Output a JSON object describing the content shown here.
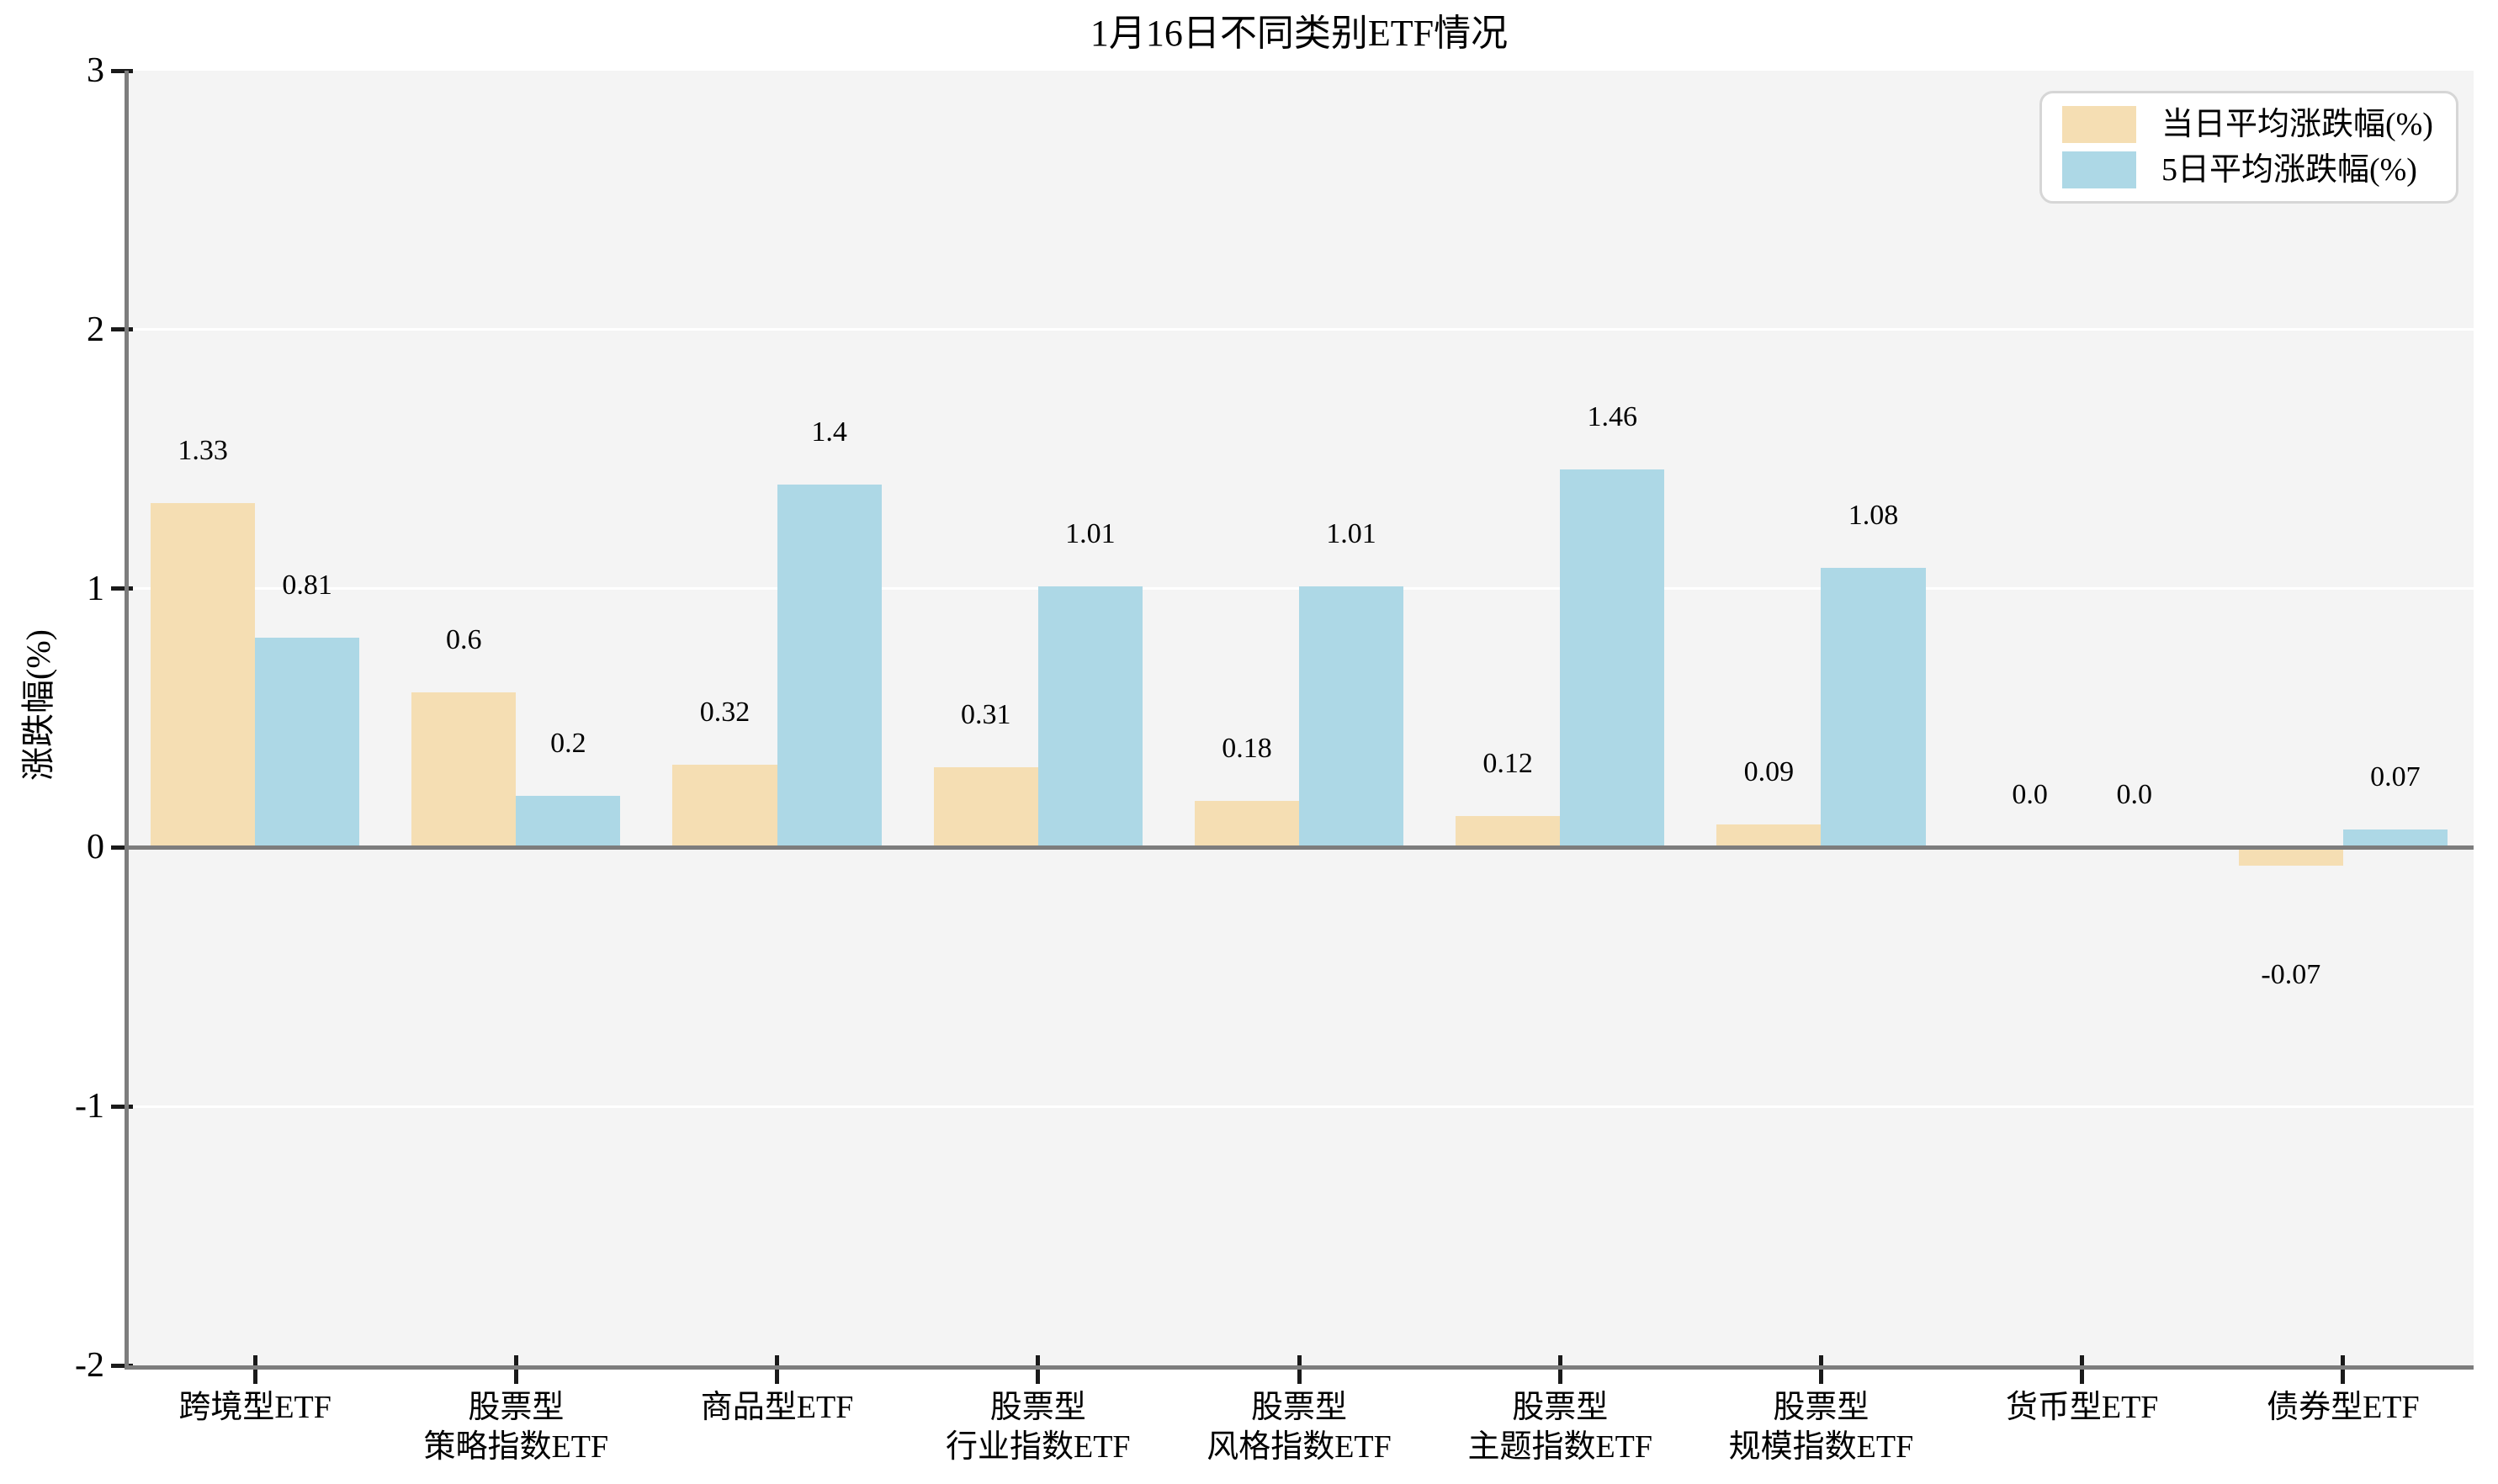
{
  "chart_data": {
    "type": "bar",
    "title": "1月16日不同类别ETF情况",
    "ylabel": "涨跌幅(%)",
    "xlabel": "",
    "ylim": [
      -2,
      3
    ],
    "yticks": [
      3,
      2,
      1,
      0,
      -1,
      -2
    ],
    "grid": "horizontal white gridlines at integer ticks on light gray plot background",
    "legend_position": "upper right",
    "categories": [
      "跨境型ETF",
      "股票型\n策略指数ETF",
      "商品型ETF",
      "股票型\n行业指数ETF",
      "股票型\n风格指数ETF",
      "股票型\n主题指数ETF",
      "股票型\n规模指数ETF",
      "货币型ETF",
      "债券型ETF"
    ],
    "series": [
      {
        "name": "当日平均涨跌幅(%)",
        "color": "#F5DEB3",
        "values": [
          1.33,
          0.6,
          0.32,
          0.31,
          0.18,
          0.12,
          0.09,
          0.0,
          -0.07
        ],
        "labels": [
          "1.33",
          "0.6",
          "0.32",
          "0.31",
          "0.18",
          "0.12",
          "0.09",
          "0.0",
          "-0.07"
        ]
      },
      {
        "name": "5日平均涨跌幅(%)",
        "color": "#ADD8E6",
        "values": [
          0.81,
          0.2,
          1.4,
          1.01,
          1.01,
          1.46,
          1.08,
          0.0,
          0.07
        ],
        "labels": [
          "0.81",
          "0.2",
          "1.4",
          "1.01",
          "1.01",
          "1.46",
          "1.08",
          "0.0",
          "0.07"
        ]
      }
    ]
  },
  "colors": {
    "figure_background": "#ffffff",
    "plot_background": "#f4f4f4",
    "spine": "#7d7d7d",
    "zero_line": "#7d7d7d",
    "gridline": "#ffffff",
    "tick": "#1a1a1a",
    "text": "#000000",
    "legend_border": "#d6d6d6",
    "legend_background": "#ffffff"
  }
}
